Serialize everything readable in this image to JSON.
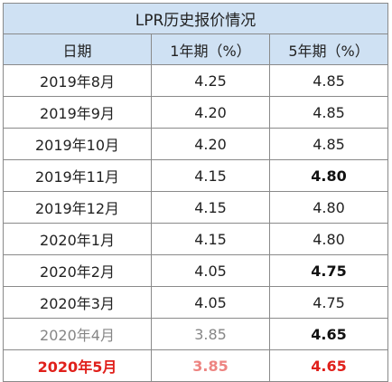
{
  "table": {
    "title": "LPR历史报价情况",
    "headers": [
      "日期",
      "1年期（%）",
      "5年期（%）"
    ],
    "rows": [
      {
        "date": "2019年8月",
        "one_year": "4.25",
        "five_year": "4.85"
      },
      {
        "date": "2019年9月",
        "one_year": "4.20",
        "five_year": "4.85"
      },
      {
        "date": "2019年10月",
        "one_year": "4.20",
        "five_year": "4.85"
      },
      {
        "date": "2019年11月",
        "one_year": "4.15",
        "five_year": "4.80"
      },
      {
        "date": "2019年12月",
        "one_year": "4.15",
        "five_year": "4.80"
      },
      {
        "date": "2020年1月",
        "one_year": "4.15",
        "five_year": "4.80"
      },
      {
        "date": "2020年2月",
        "one_year": "4.05",
        "five_year": "4.75"
      },
      {
        "date": "2020年3月",
        "one_year": "4.05",
        "five_year": "4.75"
      },
      {
        "date": "2020年4月",
        "one_year": "3.85",
        "five_year": "4.65"
      },
      {
        "date": "2020年5月",
        "one_year": "3.85",
        "five_year": "4.65"
      }
    ]
  },
  "colors": {
    "header_bg": "#cfe1f3",
    "highlight_red": "#e0201b",
    "border": "#8a8a8a"
  }
}
